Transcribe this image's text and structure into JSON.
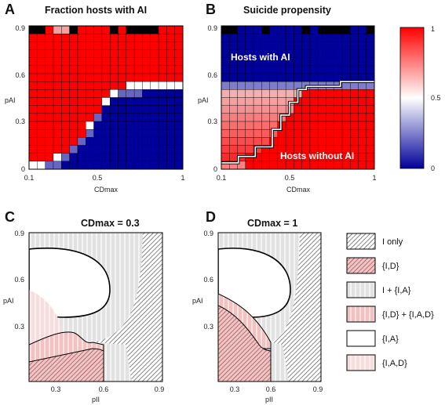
{
  "colors": {
    "red": "#ff0000",
    "blue": "#00009a",
    "white": "#ffffff",
    "black": "#000000",
    "pale_grey": "#e6e6e6",
    "pale_pink": "#f2c7c7",
    "pink": "#f5dcdc"
  },
  "chart_data": [
    {
      "type": "heatmap",
      "panel": "A",
      "title": "Fraction hosts with AI",
      "xlabel": "CDmax",
      "ylabel": "pAI",
      "xlim": [
        0.1,
        1
      ],
      "ylim": [
        0,
        0.9
      ],
      "x_ticks": [
        "0.1",
        "0.5",
        "1"
      ],
      "y_ticks": [
        "0",
        "0.3",
        "0.6",
        "0.9"
      ],
      "grid": true,
      "description_values": {
        "upper_red_band_pAI": [
          0.6,
          0.85
        ],
        "top_row_pAI": 0.9,
        "blue_region": "lower right below boundary"
      },
      "boundary": {
        "x": [
          0.1,
          0.2,
          0.3,
          0.4,
          0.5,
          0.55,
          0.6,
          0.7,
          0.8,
          0.9,
          1.0
        ],
        "y": [
          0.04,
          0.06,
          0.1,
          0.2,
          0.36,
          0.45,
          0.5,
          0.54,
          0.55,
          0.55,
          0.55
        ]
      }
    },
    {
      "type": "heatmap",
      "panel": "B",
      "title": "Suicide propensity",
      "xlabel": "CDmax",
      "ylabel": "pAI",
      "xlim": [
        0.1,
        1
      ],
      "ylim": [
        0,
        0.9
      ],
      "x_ticks": [
        "0.1",
        "0.5",
        "1"
      ],
      "y_ticks": [
        "0",
        "0.3",
        "0.6",
        "0.9"
      ],
      "grid": true,
      "annotations": [
        "Hosts with AI",
        "Hosts without AI"
      ],
      "colorbar": {
        "range": [
          0,
          1
        ],
        "ticks": [
          "0",
          "0.5",
          "1"
        ],
        "low_color": "#00009a",
        "mid_color": "#ffffff",
        "high_color": "#ff0000"
      },
      "boundary": {
        "x": [
          0.1,
          0.2,
          0.3,
          0.4,
          0.5,
          0.55,
          0.6,
          0.7,
          0.8,
          0.9,
          1.0
        ],
        "y": [
          0.04,
          0.06,
          0.1,
          0.2,
          0.36,
          0.45,
          0.5,
          0.54,
          0.55,
          0.55,
          0.55
        ]
      }
    },
    {
      "type": "area",
      "panel": "C",
      "title": "CDmax = 0.3",
      "xlabel": "pII",
      "ylabel": "pAI",
      "xlim": [
        0.15,
        0.9
      ],
      "ylim": [
        0.1,
        0.9
      ],
      "x_ticks": [
        "0.3",
        "0.6",
        "0.9"
      ],
      "y_ticks": [
        "0.3",
        "0.6",
        "0.9"
      ]
    },
    {
      "type": "area",
      "panel": "D",
      "title": "CDmax = 1",
      "xlabel": "pII",
      "ylabel": "pAI",
      "xlim": [
        0.15,
        0.9
      ],
      "ylim": [
        0.1,
        0.9
      ],
      "x_ticks": [
        "0.3",
        "0.6",
        "0.9"
      ],
      "y_ticks": [
        "0.3",
        "0.6",
        "0.9"
      ]
    }
  ],
  "legend": [
    {
      "label": "I only",
      "fill": "hatch-grey"
    },
    {
      "label": "{I,D}",
      "fill": "hatch-red"
    },
    {
      "label": "I + {I,A}",
      "fill": "stripe-grey"
    },
    {
      "label": "{I,D} + {I,A,D}",
      "fill": "stripe-red"
    },
    {
      "label": "{I,A}",
      "fill": "white"
    },
    {
      "label": "{I,A,D}",
      "fill": "stripe-pink"
    }
  ],
  "panel_letters": [
    "A",
    "B",
    "C",
    "D"
  ]
}
